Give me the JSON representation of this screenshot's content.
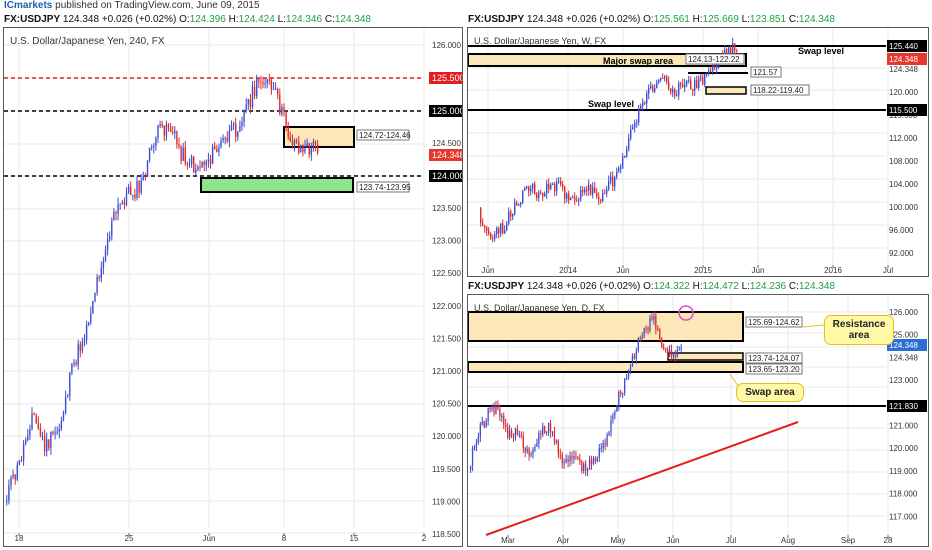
{
  "header": {
    "brand": "ICmarkets",
    "published": " published on TradingView.com, June 09, 2015"
  },
  "colors": {
    "up": "#3b4fd1",
    "down": "#e02a2a",
    "zone_fill": "#fbe7b7",
    "zone_green": "#8fe58b",
    "grid": "#e9e9e9",
    "red_level": "#e02020",
    "price_tag": "#e4382f",
    "blue_tag": "#2b6ed6",
    "trend": "#e41e1e",
    "circle": "#e24ad2"
  },
  "left": {
    "ohlc": {
      "sym": "FX:USDJPY",
      "last": "124.348",
      "chg": "+0.026 (+0.02%)",
      "o": "124.396",
      "h": "124.424",
      "l": "124.346",
      "c": "124.348"
    },
    "ohlc_labels": {
      "o": "O:",
      "h": "H:",
      "l": "L:",
      "c": "C:"
    },
    "title": "U.S. Dollar/Japanese Yen, 240, FX",
    "y_ticks": [
      "126.000",
      "125.500",
      "125.000",
      "124.500",
      "124.000",
      "123.500",
      "123.000",
      "122.500",
      "122.000",
      "121.500",
      "121.000",
      "120.500",
      "120.000",
      "119.500",
      "119.000",
      "118.500"
    ],
    "x_ticks": [
      "18",
      "25",
      "Jun",
      "8",
      "15",
      "2"
    ],
    "levels": [
      {
        "label": "125.500",
        "style": "red-dash"
      },
      {
        "label": "125.000",
        "style": "black-dash"
      },
      {
        "label": "124.000",
        "style": "black-dash"
      }
    ],
    "zones": [
      {
        "label": "124.72-124.46",
        "color": "orange"
      },
      {
        "label": "123.74-123.95",
        "color": "green"
      }
    ],
    "price_tag": "124.348"
  },
  "weekly": {
    "ohlc": {
      "sym": "FX:USDJPY",
      "last": "124.348",
      "chg": "+0.026 (+0.02%)",
      "o": "125.561",
      "h": "125.669",
      "l": "123.851",
      "c": "124.348"
    },
    "title": "U.S. Dollar/Japanese Yen, W, FX",
    "y_ticks": [
      "125.440",
      "124.348",
      "120.000",
      "115.500",
      "112.000",
      "108.000",
      "104.000",
      "100.000",
      "96.000",
      "92.000"
    ],
    "x_ticks": [
      "Jun",
      "2014",
      "Jun",
      "2015",
      "Jun",
      "2016",
      "Jul"
    ],
    "labels": {
      "swap_level_top": "Swap level",
      "major_swap": "Major swap area",
      "swap_level": "Swap level"
    },
    "zones": [
      "124.13-122.22",
      "121.57",
      "118.22-119.40"
    ]
  },
  "daily": {
    "ohlc": {
      "sym": "FX:USDJPY",
      "last": "124.348",
      "chg": "+0.026 (+0.02%)",
      "o": "124.322",
      "h": "124.472",
      "l": "124.236",
      "c": "124.348"
    },
    "title": "U.S. Dollar/Japanese Yen, D, FX",
    "y_ticks": [
      "126.000",
      "125.000",
      "124.348",
      "123.000",
      "121.830",
      "121.000",
      "120.000",
      "119.000",
      "118.000",
      "117.000"
    ],
    "x_ticks": [
      "Mar",
      "Apr",
      "May",
      "Jun",
      "Jul",
      "Aug",
      "Sep",
      "28"
    ],
    "zones": [
      "125.69-124.62",
      "123.74-124.07",
      "123.65-123.20"
    ],
    "callouts": {
      "resistance": "Resistance area",
      "swap": "Swap area"
    }
  }
}
